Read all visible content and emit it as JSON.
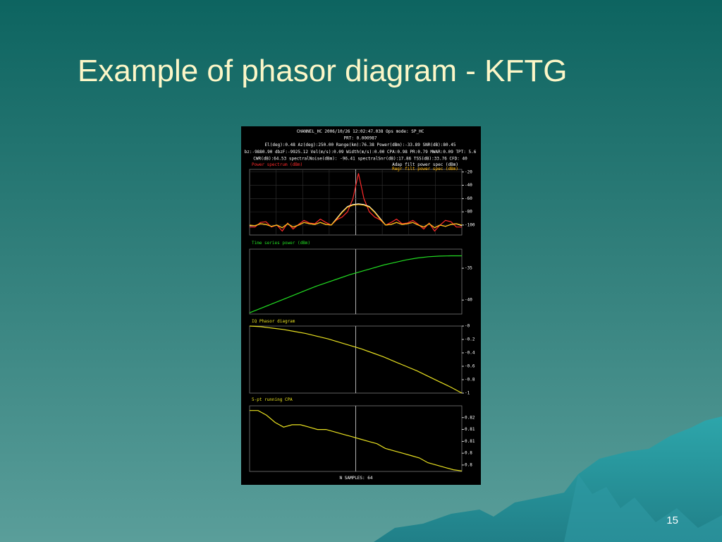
{
  "slide": {
    "title": "Example of phasor diagram - KFTG",
    "page_number": "15"
  },
  "screenshot": {
    "header_lines": [
      "CHANNEL_HC 2006/10/26 12:02:47.038 Ops mode: SP_HC",
      "PRT: 0.000987",
      "El(deg):0.48  Az(deg):250.00  Range(km):76.38  Power(dBm):-33.89  SNR(dB):80.45",
      "bz:-9880.90  dbzF:-9925.12 Vel(m/s):0.09  Width(m/s):0.00  CPA:0.98  PR:0.79  MWAR:0.09 TPT: 5.6",
      "CWR(dB):64.53  spectralNoise(dBm): -96.41  spectralSnr(dB):17.86 TSS(dB):33.76 CFD: 40"
    ],
    "footer": "N SAMPLES: 64"
  },
  "chart_data": [
    {
      "type": "line",
      "ylim": [
        -115,
        -16
      ],
      "yticks": [
        -20,
        -40,
        -60,
        -80,
        -100
      ],
      "grid": true,
      "series": [
        {
          "name": "Power spectrum (dBm)",
          "color": "#ff2a2a",
          "values": [
            -103,
            -103,
            -96,
            -95,
            -103,
            -100,
            -109,
            -97,
            -106,
            -99,
            -93,
            -97,
            -98,
            -91,
            -96,
            -100,
            -92,
            -88,
            -80,
            -60,
            -22,
            -60,
            -80,
            -88,
            -92,
            -100,
            -96,
            -91,
            -98,
            -97,
            -93,
            -99,
            -106,
            -97,
            -109,
            -100,
            -93,
            -95,
            -103,
            -103
          ]
        },
        {
          "name": "Adap filt power spec (dBm)",
          "color": "#ffffff",
          "values": [
            -101,
            -101,
            -98,
            -99,
            -102,
            -100,
            -104,
            -98,
            -103,
            -100,
            -96,
            -98,
            -99,
            -96,
            -99,
            -100,
            -90,
            -80,
            -72,
            -69,
            -68,
            -69,
            -72,
            -80,
            -90,
            -100,
            -99,
            -96,
            -99,
            -98,
            -96,
            -100,
            -103,
            -98,
            -104,
            -100,
            -102,
            -99,
            -98,
            -101
          ]
        },
        {
          "name": "Regr filt power spec (dBm)",
          "color": "#ffb400",
          "values": [
            -100,
            -101,
            -98,
            -99,
            -102,
            -100,
            -104,
            -98,
            -103,
            -100,
            -96,
            -98,
            -99,
            -96,
            -99,
            -100,
            -91,
            -81,
            -73,
            -70,
            -69,
            -70,
            -73,
            -81,
            -91,
            -100,
            -99,
            -96,
            -99,
            -98,
            -96,
            -100,
            -103,
            -98,
            -104,
            -100,
            -102,
            -99,
            -98,
            -100
          ]
        }
      ]
    },
    {
      "type": "line",
      "ylim": [
        -42.2,
        -32
      ],
      "yticks": [
        -35,
        -40
      ],
      "series": [
        {
          "name": "Time series power (dBm)",
          "color": "#22dd22",
          "values": [
            -42,
            -41.3,
            -40.6,
            -39.9,
            -39.2,
            -38.5,
            -37.8,
            -37.2,
            -36.6,
            -36,
            -35.5,
            -35,
            -34.5,
            -34.1,
            -33.7,
            -33.4,
            -33.2,
            -33.1,
            -33.05,
            -33.05
          ]
        }
      ]
    },
    {
      "type": "line",
      "ylim": [
        -1,
        0
      ],
      "yticks": [
        {
          "value": 0,
          "label": "-0"
        },
        -0.2,
        -0.4,
        -0.6,
        -0.8,
        -1
      ],
      "series": [
        {
          "name": "IQ Phasor diagram",
          "color": "#e8e020",
          "values": [
            0,
            -0.01,
            -0.03,
            -0.05,
            -0.08,
            -0.11,
            -0.15,
            -0.19,
            -0.24,
            -0.29,
            -0.34,
            -0.4,
            -0.46,
            -0.53,
            -0.6,
            -0.67,
            -0.75,
            -0.83,
            -0.91,
            -1
          ]
        }
      ]
    },
    {
      "type": "line",
      "ylim": [
        0.7973,
        0.825
      ],
      "yticks": [
        0.82,
        {
          "value": 0.815,
          "label": "0.81"
        },
        0.81,
        {
          "value": 0.805,
          "label": "0.8"
        },
        0.8
      ],
      "series": [
        {
          "name": "5-pt running CPA",
          "color": "#e8e020",
          "values": [
            0.823,
            0.823,
            0.821,
            0.818,
            0.816,
            0.817,
            0.817,
            0.816,
            0.815,
            0.815,
            0.814,
            0.813,
            0.812,
            0.811,
            0.81,
            0.809,
            0.807,
            0.806,
            0.805,
            0.804,
            0.803,
            0.801,
            0.8,
            0.799,
            0.798,
            0.7975
          ]
        }
      ]
    }
  ]
}
